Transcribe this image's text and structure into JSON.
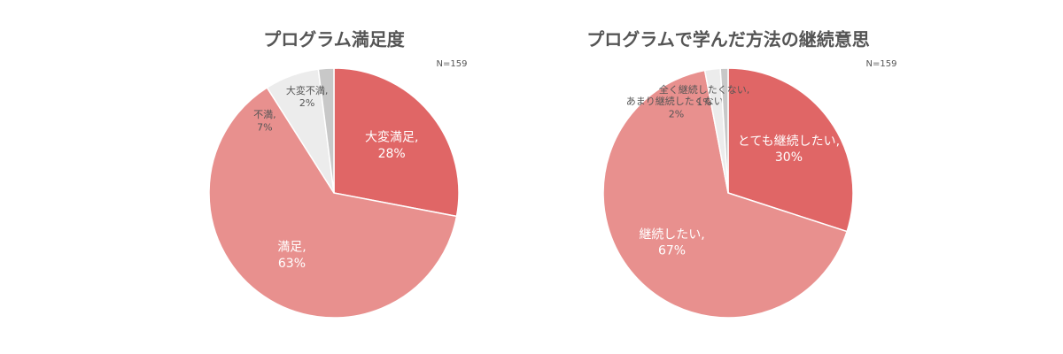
{
  "chart_data": [
    {
      "type": "pie",
      "title": "プログラム満足度",
      "note": "N=159",
      "categories": [
        "大変満足,",
        "満足,",
        "不満,",
        "大変不満,"
      ],
      "values": [
        28,
        63,
        7,
        2
      ],
      "value_labels": [
        "28%",
        "63%",
        "7%",
        "2%"
      ],
      "colors": [
        "#e06666",
        "#e8908e",
        "#ececec",
        "#c8c8c8"
      ]
    },
    {
      "type": "pie",
      "title": "プログラムで学んだ方法の継続意思",
      "note": "N=159",
      "categories": [
        "とても継続したい,",
        "継続したい,",
        "あまり継続したくない,",
        "全く継続したくない,"
      ],
      "values": [
        30,
        67,
        2,
        1
      ],
      "value_labels": [
        "30%",
        "67%",
        "2%",
        "1%"
      ],
      "colors": [
        "#e06666",
        "#e8908e",
        "#ececec",
        "#c8c8c8"
      ]
    }
  ]
}
